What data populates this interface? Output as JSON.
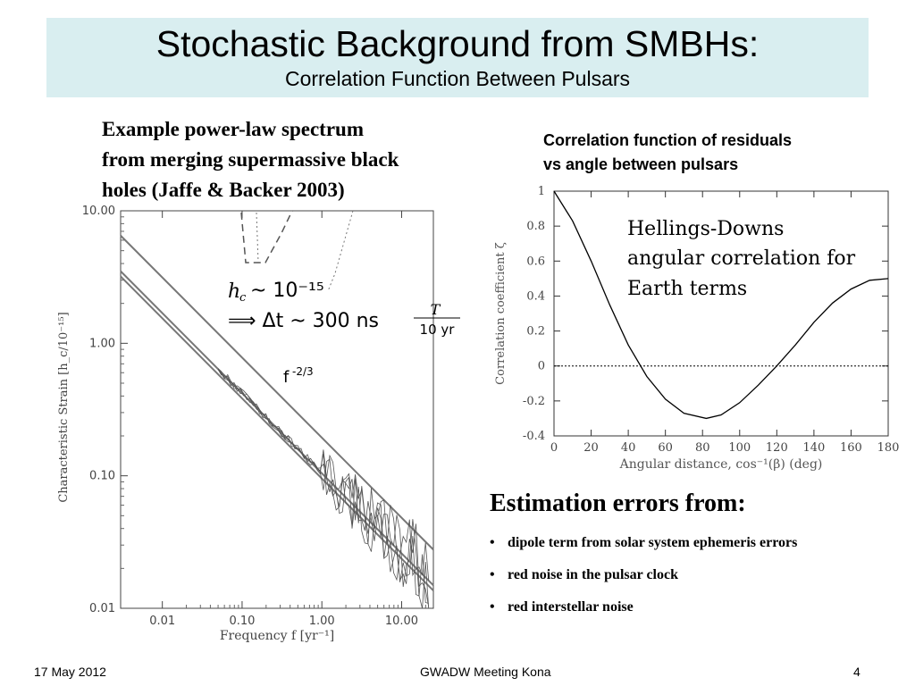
{
  "title": {
    "main": "Stochastic Background from SMBHs:",
    "sub": "Correlation Function Between Pulsars"
  },
  "left_panel": {
    "caption_lines": [
      "Example power-law spectrum",
      "from merging supermassive black",
      "holes (Jaffe & Backer 2003)"
    ]
  },
  "right_panel": {
    "caption_lines": [
      "Correlation function of residuals",
      "vs angle between pulsars"
    ]
  },
  "estimation": {
    "heading": "Estimation errors from:",
    "bullets": [
      "dipole term from solar system ephemeris errors",
      "red noise in the pulsar clock",
      "red interstellar noise"
    ]
  },
  "footer": {
    "date": "17 May 2012",
    "event": "GWADW Meeting Kona",
    "page": "4"
  },
  "chart_data": [
    {
      "type": "line",
      "scale": "log-log",
      "xlabel": "Frequency f [yr⁻¹]",
      "ylabel": "Characteristic Strain [h_c/10⁻¹⁵]",
      "x_ticks": [
        "0.01",
        "0.10",
        "1.00",
        "10.00"
      ],
      "y_ticks": [
        "0.01",
        "0.10",
        "1.00",
        "10.00"
      ],
      "xlim": [
        0.003,
        25
      ],
      "ylim": [
        0.01,
        10
      ],
      "annotations": {
        "hc_line": "h_c ~ 10⁻¹⁵",
        "dt_line": "⟹ Δt ~ 300 ns",
        "frac_num": "T",
        "frac_den": "10 yr",
        "slope_base": "f",
        "slope_exp": "-2/3"
      },
      "series": [
        {
          "x": [
            0.003,
            25
          ],
          "y": [
            6.5,
            0.0277
          ]
        },
        {
          "x": [
            0.003,
            25
          ],
          "y": [
            3.5,
            0.0149
          ]
        },
        {
          "x": [
            0.003,
            25
          ],
          "y": [
            3.2,
            0.0136
          ]
        }
      ]
    },
    {
      "type": "line",
      "xlabel": "Angular distance, cos⁻¹(β) (deg)",
      "ylabel": "Correlation coefficient ζ",
      "x_ticks": [
        "0",
        "20",
        "40",
        "60",
        "80",
        "100",
        "120",
        "140",
        "160",
        "180"
      ],
      "y_ticks": [
        "1",
        "0.8",
        "0.6",
        "0.4",
        "0.2",
        "0",
        "-0.2",
        "-0.4"
      ],
      "xlim": [
        0,
        180
      ],
      "ylim": [
        -0.4,
        1
      ],
      "annotation_lines": [
        "Hellings-Downs",
        "angular correlation for",
        "Earth terms"
      ],
      "series": [
        {
          "x": [
            0,
            10,
            20,
            30,
            40,
            50,
            60,
            70,
            82,
            90,
            100,
            110,
            120,
            130,
            140,
            150,
            160,
            170,
            180
          ],
          "y": [
            1.0,
            0.83,
            0.6,
            0.35,
            0.12,
            -0.06,
            -0.19,
            -0.27,
            -0.3,
            -0.28,
            -0.21,
            -0.11,
            0.0,
            0.12,
            0.25,
            0.36,
            0.44,
            0.49,
            0.5
          ]
        }
      ]
    }
  ]
}
